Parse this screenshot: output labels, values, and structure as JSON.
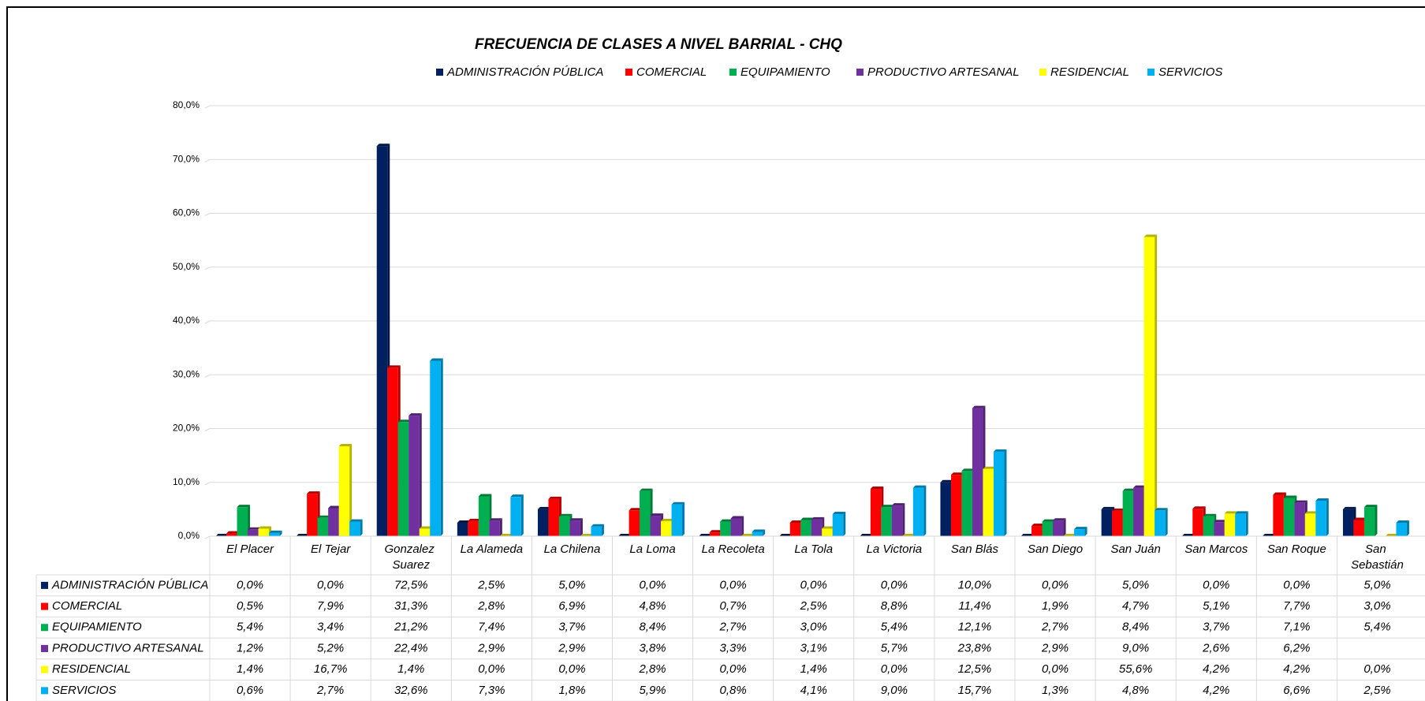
{
  "chart_data": {
    "type": "bar",
    "title": "FRECUENCIA DE CLASES A NIVEL BARRIAL - CHQ",
    "categories": [
      "El Placer",
      "El Tejar",
      "Gonzalez Suarez",
      "La Alameda",
      "La Chilena",
      "La Loma",
      "La Recoleta",
      "La Tola",
      "La Victoria",
      "San Blás",
      "San Diego",
      "San Juán",
      "San Marcos",
      "San Roque",
      "San Sebastián"
    ],
    "series": [
      {
        "name": "ADMINISTRACIÓN PÚBLICA",
        "color": "#002060",
        "values": [
          0,
          0,
          72.5,
          2.5,
          5,
          0,
          0,
          0,
          0,
          10,
          0,
          5,
          0,
          0,
          5
        ],
        "value_labels": [
          "0,0%",
          "0,0%",
          "72,5%",
          "2,5%",
          "5,0%",
          "0,0%",
          "0,0%",
          "0,0%",
          "0,0%",
          "10,0%",
          "0,0%",
          "5,0%",
          "0,0%",
          "0,0%",
          "5,0%"
        ]
      },
      {
        "name": "COMERCIAL",
        "color": "#ff0000",
        "values": [
          0.5,
          7.9,
          31.3,
          2.8,
          6.9,
          4.8,
          0.7,
          2.5,
          8.8,
          11.4,
          1.9,
          4.7,
          5.1,
          7.7,
          3
        ],
        "value_labels": [
          "0,5%",
          "7,9%",
          "31,3%",
          "2,8%",
          "6,9%",
          "4,8%",
          "0,7%",
          "2,5%",
          "8,8%",
          "11,4%",
          "1,9%",
          "4,7%",
          "5,1%",
          "7,7%",
          "3,0%"
        ]
      },
      {
        "name": "EQUIPAMIENTO",
        "color": "#00b050",
        "values": [
          5.4,
          3.4,
          21.2,
          7.4,
          3.7,
          8.4,
          2.7,
          3,
          5.4,
          12.1,
          2.7,
          8.4,
          3.7,
          7.1,
          5.4
        ],
        "value_labels": [
          "5,4%",
          "3,4%",
          "21,2%",
          "7,4%",
          "3,7%",
          "8,4%",
          "2,7%",
          "3,0%",
          "5,4%",
          "12,1%",
          "2,7%",
          "8,4%",
          "3,7%",
          "7,1%",
          "5,4%"
        ]
      },
      {
        "name": "PRODUCTIVO ARTESANAL",
        "color": "#7030a0",
        "values": [
          1.2,
          5.2,
          22.4,
          2.9,
          2.9,
          3.8,
          3.3,
          3.1,
          5.7,
          23.8,
          2.9,
          9,
          2.6,
          6.2,
          null
        ],
        "value_labels": [
          "1,2%",
          "5,2%",
          "22,4%",
          "2,9%",
          "2,9%",
          "3,8%",
          "3,3%",
          "3,1%",
          "5,7%",
          "23,8%",
          "2,9%",
          "9,0%",
          "2,6%",
          "6,2%",
          null
        ]
      },
      {
        "name": "RESIDENCIAL",
        "color": "#ffff00",
        "values": [
          1.4,
          16.7,
          1.4,
          0,
          0,
          2.8,
          0,
          1.4,
          0,
          12.5,
          0,
          55.6,
          4.2,
          4.2,
          0
        ],
        "value_labels": [
          "1,4%",
          "16,7%",
          "1,4%",
          "0,0%",
          "0,0%",
          "2,8%",
          "0,0%",
          "1,4%",
          "0,0%",
          "12,5%",
          "0,0%",
          "55,6%",
          "4,2%",
          "4,2%",
          "0,0%"
        ]
      },
      {
        "name": "SERVICIOS",
        "color": "#00b0f0",
        "values": [
          0.6,
          2.7,
          32.6,
          7.3,
          1.8,
          5.9,
          0.8,
          4.1,
          9,
          15.7,
          1.3,
          4.8,
          4.2,
          6.6,
          2.5
        ],
        "value_labels": [
          "0,6%",
          "2,7%",
          "32,6%",
          "7,3%",
          "1,8%",
          "5,9%",
          "0,8%",
          "4,1%",
          "9,0%",
          "15,7%",
          "1,3%",
          "4,8%",
          "4,2%",
          "6,6%",
          "2,5%"
        ]
      }
    ],
    "ylim": [
      0,
      80
    ],
    "yticks": [
      {
        "value": 0,
        "label": "0,0%"
      },
      {
        "value": 10,
        "label": "10,0%"
      },
      {
        "value": 20,
        "label": "20,0%"
      },
      {
        "value": 30,
        "label": "30,0%"
      },
      {
        "value": 40,
        "label": "40,0%"
      },
      {
        "value": 50,
        "label": "50,0%"
      },
      {
        "value": 60,
        "label": "60,0%"
      },
      {
        "value": 70,
        "label": "70,0%"
      },
      {
        "value": 80,
        "label": "80,0%"
      }
    ],
    "grid": true,
    "legend": "top"
  }
}
